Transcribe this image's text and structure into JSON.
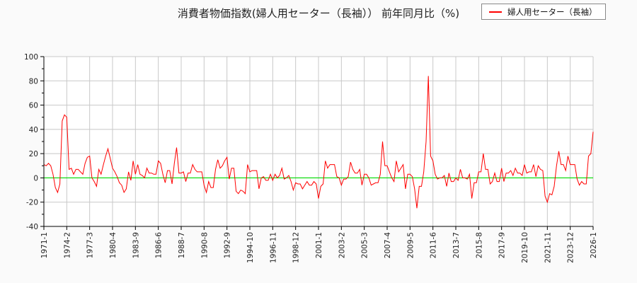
{
  "chart_data": {
    "type": "line",
    "title": "消費者物価指数(婦人用セーター（長袖）） 前年同月比（%)",
    "xlabel": "",
    "ylabel": "",
    "ylim": [
      -40,
      100
    ],
    "yticks": [
      -40,
      -20,
      0,
      20,
      40,
      60,
      80,
      100
    ],
    "grid": true,
    "legend_position": "top-right",
    "colors": {
      "series": "#ff0000",
      "zero_line": "#00dd00",
      "grid": "#c8c8c8"
    },
    "x_tick_labels": [
      "1971-1",
      "1974-2",
      "1977-3",
      "1980-4",
      "1983-9",
      "1986-6",
      "1988-7",
      "1990-8",
      "1992-9",
      "1994-10",
      "1996-11",
      "1998-12",
      "2001-1",
      "2003-2",
      "2005-3",
      "2007-4",
      "2009-5",
      "2011-6",
      "2013-7",
      "2015-8",
      "2017-9",
      "2019-10",
      "2021-11",
      "2023-12",
      "2026-1"
    ],
    "x_tick_step": 10,
    "series": [
      {
        "name": "婦人用セーター（長袖）",
        "values": [
          11,
          10,
          12,
          10,
          3,
          -8,
          -12,
          -5,
          47,
          52,
          50,
          7,
          8,
          3,
          7,
          7,
          5,
          3,
          12,
          17,
          18,
          0,
          -3,
          -7,
          7,
          3,
          11,
          18,
          24,
          16,
          8,
          5,
          1,
          -4,
          -6,
          -12,
          -9,
          5,
          -2,
          14,
          3,
          11,
          3,
          2,
          0,
          8,
          4,
          4,
          3,
          3,
          14,
          12,
          3,
          -4,
          6,
          6,
          -5,
          12,
          25,
          4,
          4,
          5,
          -3,
          4,
          4,
          11,
          7,
          5,
          5,
          5,
          -6,
          -12,
          -3,
          -8,
          -8,
          7,
          15,
          8,
          10,
          14,
          17,
          -1,
          8,
          8,
          -11,
          -13,
          -10,
          -11,
          -13,
          11,
          5,
          6,
          6,
          6,
          -9,
          0,
          1,
          -2,
          -2,
          3,
          -2,
          3,
          0,
          2,
          8,
          -1,
          0,
          2,
          -3,
          -10,
          -4,
          -5,
          -5,
          -9,
          -6,
          -3,
          -6,
          -6,
          -3,
          -5,
          -17,
          -7,
          -5,
          14,
          8,
          11,
          11,
          11,
          1,
          0,
          -6,
          -1,
          -1,
          1,
          13,
          7,
          4,
          4,
          7,
          -6,
          3,
          3,
          0,
          -6,
          -5,
          -4,
          -4,
          3,
          30,
          10,
          10,
          5,
          0,
          -3,
          14,
          5,
          8,
          11,
          -9,
          3,
          3,
          1,
          -9,
          -25,
          -7,
          -7,
          5,
          30,
          84,
          18,
          14,
          3,
          -1,
          0,
          0,
          2,
          -7,
          4,
          -3,
          -3,
          0,
          -2,
          7,
          0,
          0,
          -1,
          3,
          -17,
          -4,
          -4,
          5,
          5,
          20,
          7,
          7,
          -5,
          -3,
          4,
          -3,
          -3,
          8,
          -3,
          4,
          4,
          6,
          2,
          8,
          4,
          4,
          2,
          11,
          4,
          5,
          5,
          11,
          1,
          10,
          7,
          6,
          -15,
          -20,
          -13,
          -14,
          -7,
          10,
          22,
          11,
          11,
          6,
          18,
          11,
          11,
          11,
          -1,
          -6,
          -3,
          -5,
          -5,
          18,
          20,
          38
        ]
      }
    ]
  }
}
